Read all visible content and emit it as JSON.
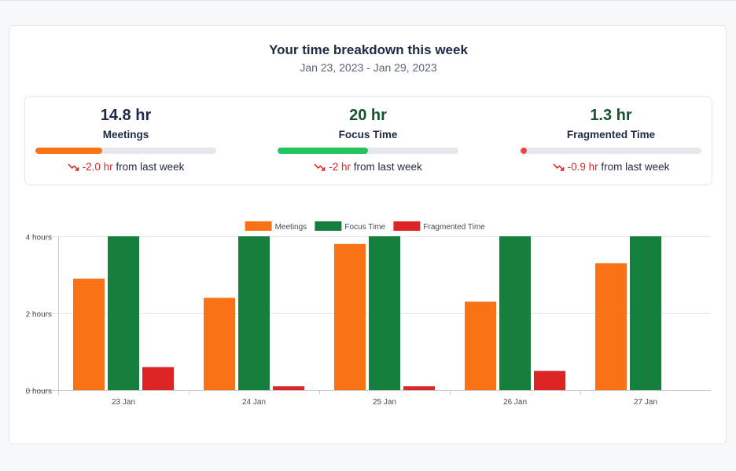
{
  "header": {
    "title": "Your time breakdown this week",
    "date_range": "Jan 23, 2023 - Jan 29, 2023"
  },
  "stats": [
    {
      "value": "14.8 hr",
      "label": "Meetings",
      "progress_fraction": 0.37,
      "color": "#f97316",
      "change": "-2.0 hr",
      "change_suffix": "from last week",
      "value_color": "#1f2a44",
      "icon": "trending-down-icon"
    },
    {
      "value": "20 hr",
      "label": "Focus Time",
      "progress_fraction": 0.5,
      "color": "#22c55e",
      "change": "-2 hr",
      "change_suffix": "from last week",
      "value_color": "#14532d",
      "icon": "trending-down-icon"
    },
    {
      "value": "1.3 hr",
      "label": "Fragmented Time",
      "progress_fraction": 0.03,
      "color": "#ef4444",
      "change": "-0.9 hr",
      "change_suffix": "from last week",
      "value_color": "#14532d",
      "icon": "trending-down-icon"
    }
  ],
  "chart_data": {
    "type": "bar",
    "title": "",
    "xlabel": "",
    "ylabel": "",
    "ylim": [
      0,
      4
    ],
    "yticks": [
      {
        "value": 0,
        "label": "0 hours"
      },
      {
        "value": 2,
        "label": "2 hours"
      },
      {
        "value": 4,
        "label": "4 hours"
      }
    ],
    "categories": [
      "23 Jan",
      "24 Jan",
      "25 Jan",
      "26 Jan",
      "27 Jan"
    ],
    "legend_position": "top-center",
    "grid": true,
    "series": [
      {
        "name": "Meetings",
        "color": "#f97316",
        "values": [
          2.9,
          2.4,
          3.8,
          2.3,
          3.3
        ]
      },
      {
        "name": "Focus Time",
        "color": "#15803d",
        "values": [
          4,
          4,
          4,
          4,
          4
        ]
      },
      {
        "name": "Fragmented Time",
        "color": "#dc2626",
        "values": [
          0.6,
          0.1,
          0.1,
          0.5,
          0
        ]
      }
    ]
  }
}
